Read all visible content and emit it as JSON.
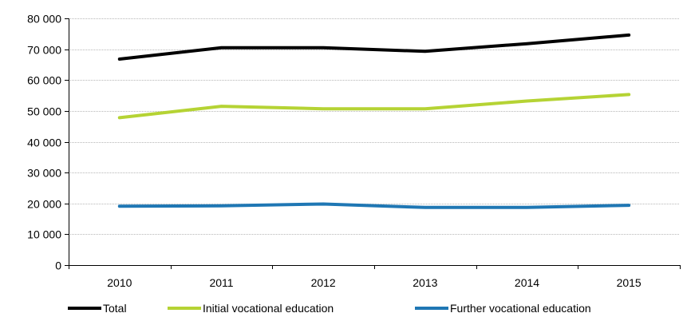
{
  "chart_data": {
    "type": "line",
    "x": [
      "2010",
      "2011",
      "2012",
      "2013",
      "2014",
      "2015"
    ],
    "ylim": [
      0,
      80000
    ],
    "yticks": [
      0,
      10000,
      20000,
      30000,
      40000,
      50000,
      60000,
      70000,
      80000
    ],
    "ytick_labels": [
      "0",
      "10 000",
      "20 000",
      "30 000",
      "40 000",
      "50 000",
      "60 000",
      "70 000",
      "80 000"
    ],
    "grid": true,
    "legend_position": "bottom",
    "series": [
      {
        "name": "Total",
        "color": "#000000",
        "values": [
          66800,
          70500,
          70500,
          69300,
          71800,
          74600
        ]
      },
      {
        "name": "Initial vocational education",
        "color": "#b5d334",
        "values": [
          47800,
          51500,
          50700,
          50700,
          53200,
          55300
        ]
      },
      {
        "name": "Further vocational education",
        "color": "#1f77b4",
        "values": [
          19100,
          19200,
          19800,
          18700,
          18700,
          19400
        ]
      }
    ]
  }
}
